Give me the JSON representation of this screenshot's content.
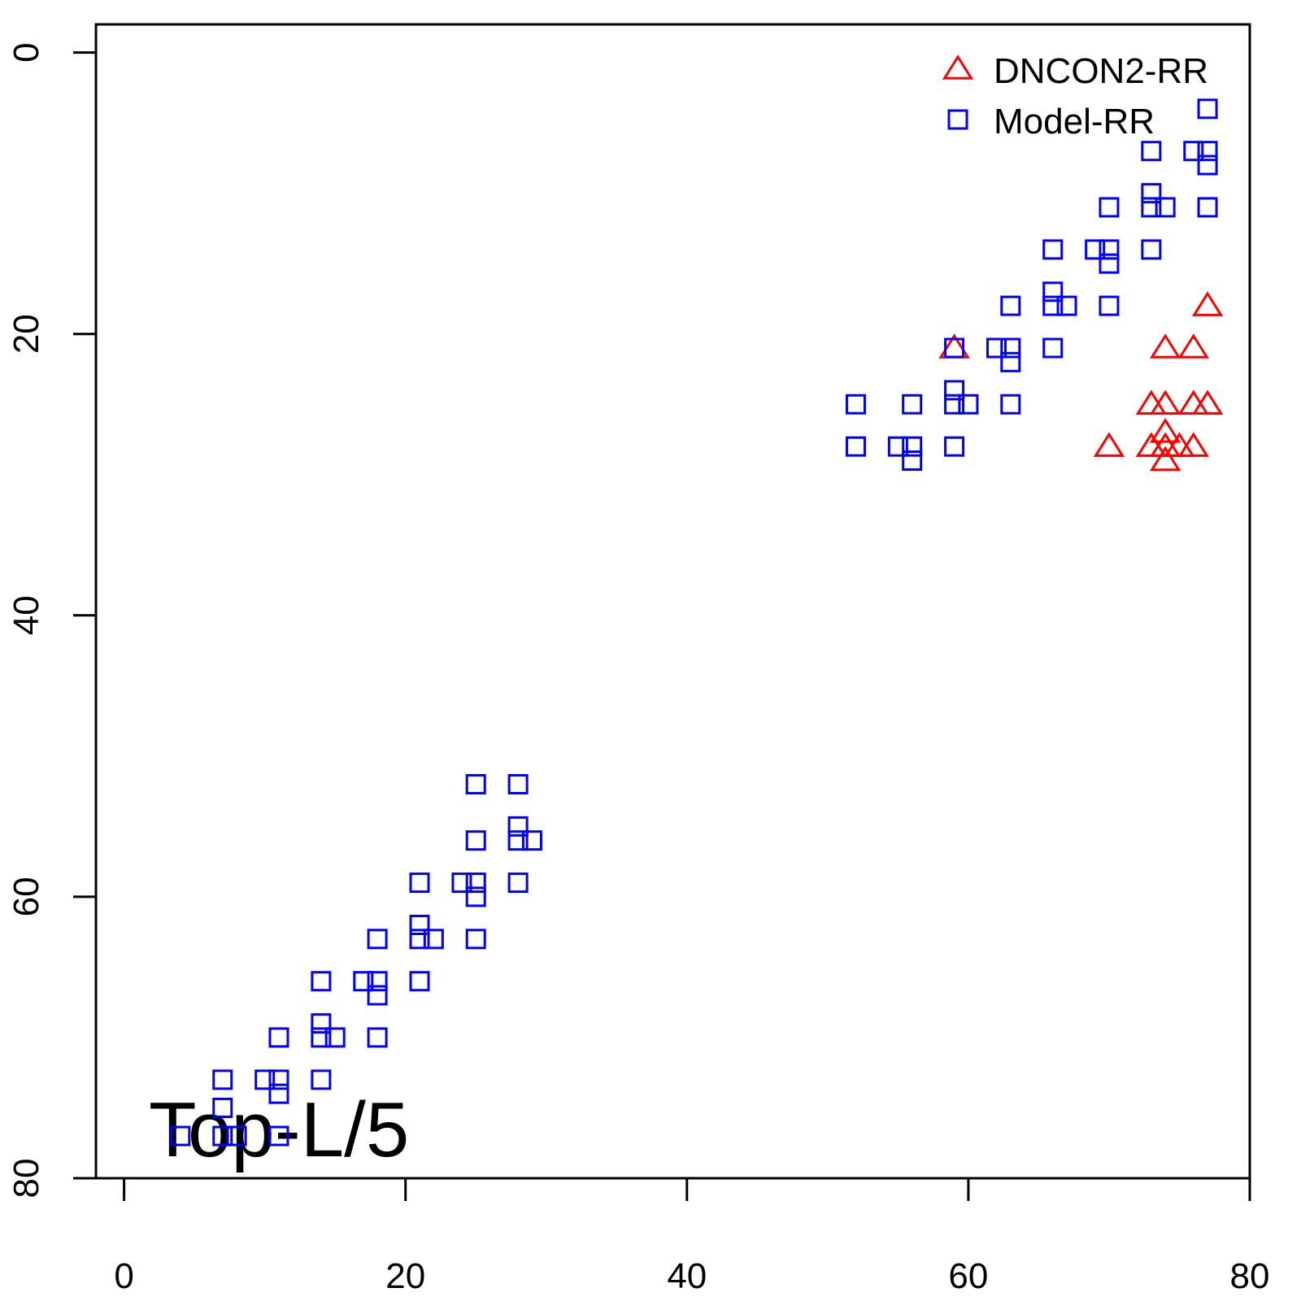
{
  "chart_data": {
    "type": "scatter",
    "annotation": "Top-L/5",
    "xlim": [
      -2,
      80
    ],
    "xticks": [
      0,
      20,
      40,
      60,
      80
    ],
    "ylim": [
      80,
      -2
    ],
    "yticks": [
      0,
      20,
      40,
      60,
      80
    ],
    "legend": "top-right",
    "series": [
      {
        "name": "DNCON2-RR",
        "color": "#ff0000",
        "marker": "triangle",
        "x": [
          59,
          77,
          74,
          76,
          73,
          74,
          76,
          77,
          70,
          73,
          74,
          74,
          75,
          76,
          74
        ],
        "y": [
          21,
          18,
          21,
          21,
          25,
          25,
          25,
          25,
          28,
          28,
          27,
          28,
          28,
          28,
          29
        ]
      },
      {
        "name": "Model-RR",
        "color": "#0000ff",
        "marker": "square",
        "x": [
          77,
          73,
          76,
          77,
          77,
          73,
          73,
          74,
          70,
          77,
          66,
          69,
          70,
          73,
          70,
          66,
          66,
          67,
          63,
          70,
          59,
          62,
          63,
          66,
          63,
          59,
          52,
          56,
          59,
          60,
          63,
          52,
          55,
          56,
          56,
          59,
          25,
          28,
          28,
          25,
          28,
          29,
          21,
          24,
          25,
          28,
          25,
          21,
          21,
          22,
          18,
          25,
          14,
          17,
          18,
          21,
          18,
          14,
          14,
          15,
          11,
          18,
          7,
          10,
          11,
          14,
          11,
          7,
          4,
          7,
          8,
          11
        ],
        "y": [
          4,
          7,
          7,
          7,
          8,
          10,
          11,
          11,
          11,
          11,
          14,
          14,
          14,
          14,
          15,
          17,
          18,
          18,
          18,
          18,
          21,
          21,
          21,
          21,
          22,
          24,
          25,
          25,
          25,
          25,
          25,
          28,
          28,
          28,
          29,
          28,
          52,
          52,
          55,
          56,
          56,
          56,
          59,
          59,
          59,
          59,
          60,
          62,
          63,
          63,
          63,
          63,
          66,
          66,
          66,
          66,
          67,
          69,
          70,
          70,
          70,
          70,
          73,
          73,
          73,
          73,
          74,
          75,
          77,
          77,
          77,
          77
        ]
      }
    ]
  }
}
